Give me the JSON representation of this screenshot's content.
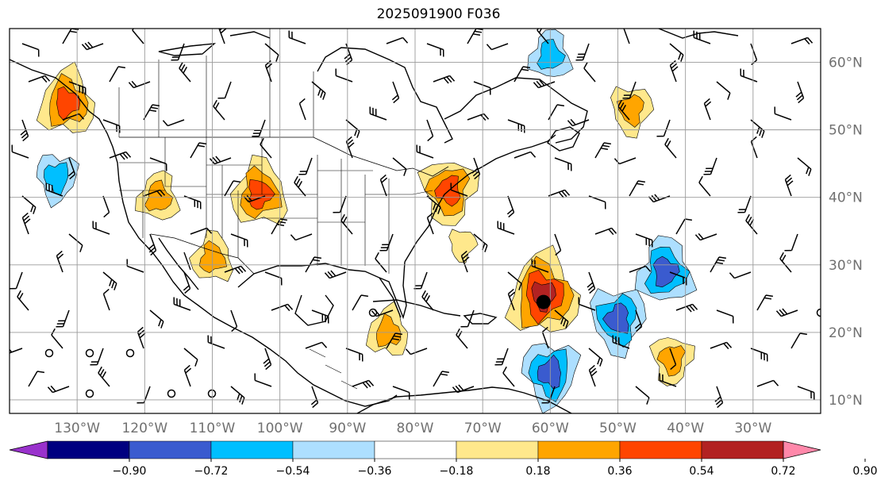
{
  "title": "2025091900 F036",
  "map": {
    "lon_ticks": [
      "130°W",
      "120°W",
      "110°W",
      "100°W",
      "90°W",
      "80°W",
      "70°W",
      "60°W",
      "50°W",
      "40°W",
      "30°W"
    ],
    "lat_ticks": [
      "60°N",
      "50°N",
      "40°N",
      "30°N",
      "20°N",
      "10°N"
    ],
    "lon_values": [
      -130,
      -120,
      -110,
      -100,
      -90,
      -80,
      -70,
      -60,
      -50,
      -40,
      -30
    ],
    "lat_values": [
      60,
      50,
      40,
      30,
      20,
      10
    ],
    "extent": {
      "lon_min": -140,
      "lon_max": -20,
      "lat_min": 8,
      "lat_max": 65
    },
    "storm_marker": {
      "lon": -61,
      "lat": 24.5
    },
    "grid": true
  },
  "colorbar": {
    "labels": [
      "−0.90",
      "−0.72",
      "−0.54",
      "−0.36",
      "−0.18",
      "0.18",
      "0.36",
      "0.54",
      "0.72",
      "0.90"
    ],
    "colors": [
      "#9932CC",
      "#000080",
      "#3A5BCF",
      "#00BFFF",
      "#ADDFFF",
      "#FFFFFF",
      "#FFE88C",
      "#FFA500",
      "#FF4500",
      "#B22222",
      "#FF88AA"
    ]
  },
  "anomalies": [
    {
      "lon": -61,
      "lat": 25.5,
      "level": 0.72
    },
    {
      "lon": -50,
      "lat": 22,
      "level": -0.54
    },
    {
      "lon": -43,
      "lat": 29,
      "level": -0.54
    },
    {
      "lon": -60,
      "lat": 14,
      "level": -0.54
    },
    {
      "lon": -103,
      "lat": 40.5,
      "level": 0.54
    },
    {
      "lon": -75,
      "lat": 41,
      "level": 0.54
    },
    {
      "lon": -131.5,
      "lat": 54,
      "level": 0.54
    },
    {
      "lon": -48,
      "lat": 53,
      "level": 0.36
    },
    {
      "lon": -60,
      "lat": 61,
      "level": -0.36
    },
    {
      "lon": -133,
      "lat": 43,
      "level": -0.36
    },
    {
      "lon": -110,
      "lat": 31,
      "level": 0.36
    },
    {
      "lon": -42,
      "lat": 16,
      "level": 0.36
    },
    {
      "lon": -84,
      "lat": 20,
      "level": 0.36
    },
    {
      "lon": -73,
      "lat": 33,
      "level": 0.18
    },
    {
      "lon": -118,
      "lat": 40,
      "level": 0.36
    }
  ]
}
